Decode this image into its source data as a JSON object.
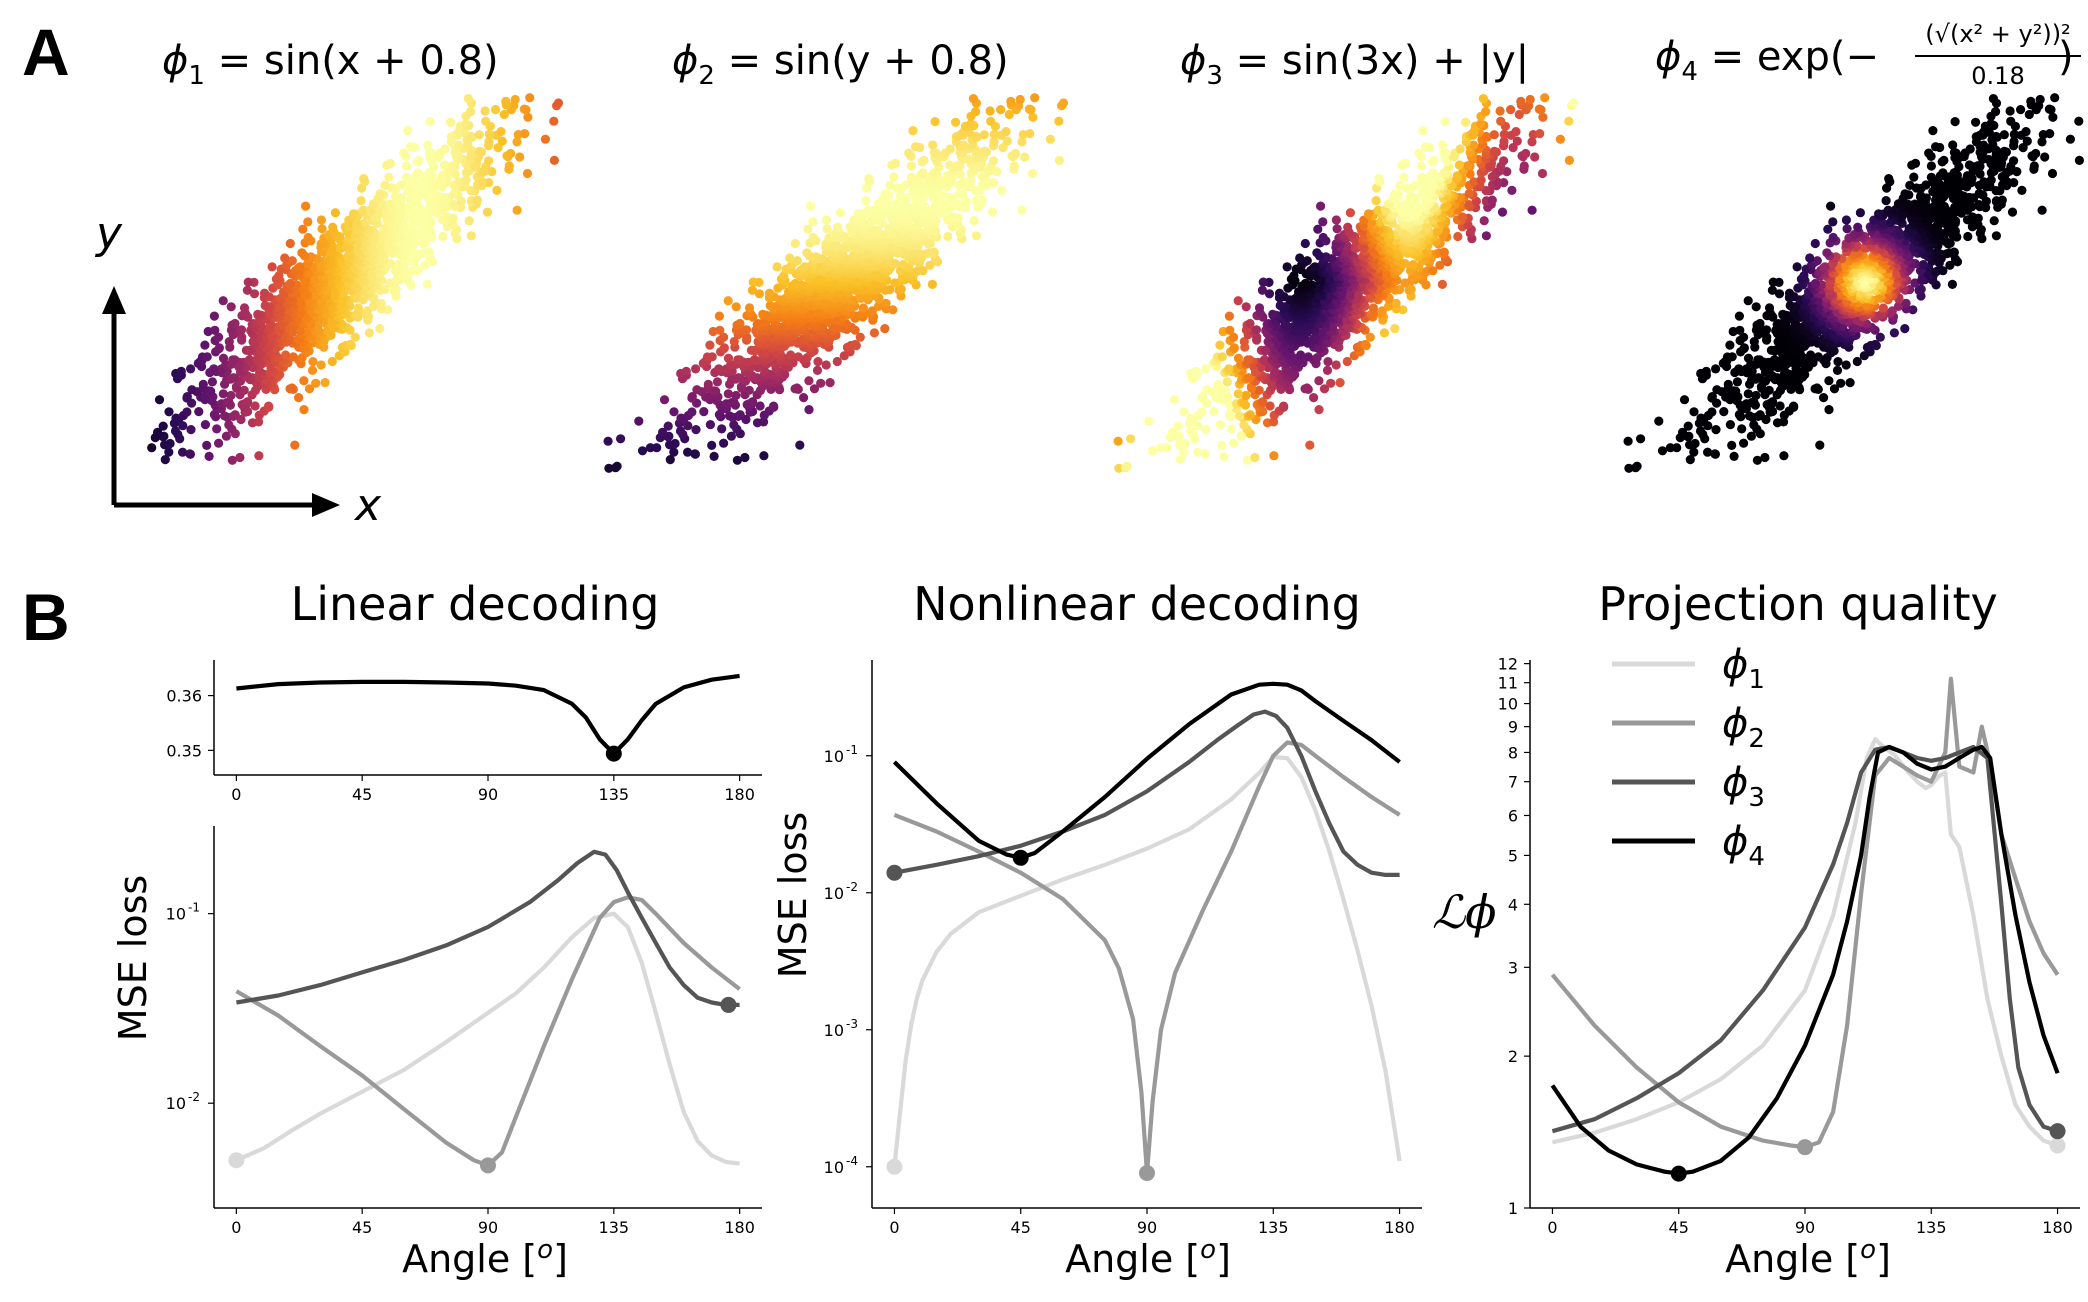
{
  "panels": {
    "a": "A",
    "b": "B"
  },
  "scatter": {
    "titles": [
      {
        "main": "ϕ",
        "sub": "1",
        "rest": " = sin(x + 0.8)"
      },
      {
        "main": "ϕ",
        "sub": "2",
        "rest": " = sin(y + 0.8)"
      },
      {
        "main": "ϕ",
        "sub": "3",
        "rest": " = sin(3x) + |y|"
      },
      {
        "main": "ϕ",
        "sub": "4",
        "rest": " = exp(−"
      }
    ],
    "phi4_fraction": {
      "numerator": "(√(x² + y²))²",
      "denominator": "0.18",
      "close": ")"
    },
    "axes": {
      "x": "x",
      "y": "y"
    },
    "colormap": "inferno",
    "arrow_color": "#000000"
  },
  "chart_data": [
    {
      "type": "line",
      "title": "Linear decoding",
      "inset": {
        "x": [
          0,
          15,
          30,
          45,
          60,
          75,
          90,
          100,
          110,
          120,
          125,
          130,
          135,
          140,
          145,
          150,
          160,
          170,
          180
        ],
        "y": [
          0.3613,
          0.3621,
          0.3624,
          0.3625,
          0.3625,
          0.3624,
          0.3622,
          0.3618,
          0.361,
          0.3585,
          0.356,
          0.352,
          0.3494,
          0.352,
          0.3555,
          0.3585,
          0.3615,
          0.3629,
          0.3636
        ],
        "yticks": [
          "0.35",
          "0.36"
        ],
        "xticks": [
          "0",
          "45",
          "90",
          "135",
          "180"
        ],
        "ylim": [
          0.3455,
          0.3665
        ],
        "min_marker": {
          "x": 135,
          "y": 0.3494
        }
      },
      "xlabel": "Angle [o]",
      "ylabel": "MSE loss",
      "xlim": [
        -8,
        188
      ],
      "ylim": [
        0.0028,
        0.29
      ],
      "yscale": "log",
      "yticks": [
        "10",
        "10"
      ],
      "ytick_exp": [
        "-2",
        "-1"
      ],
      "xticks": [
        "0",
        "45",
        "90",
        "135",
        "180"
      ],
      "series": [
        {
          "name": "ϕ1",
          "color": "#d9d9d9",
          "x": [
            0,
            10,
            20,
            30,
            45,
            60,
            75,
            90,
            100,
            110,
            120,
            128,
            135,
            140,
            145,
            150,
            155,
            160,
            165,
            170,
            175,
            180
          ],
          "y": [
            0.005,
            0.0058,
            0.0072,
            0.0088,
            0.0115,
            0.015,
            0.021,
            0.03,
            0.038,
            0.052,
            0.075,
            0.095,
            0.1,
            0.085,
            0.055,
            0.03,
            0.016,
            0.009,
            0.0063,
            0.0053,
            0.0049,
            0.0048
          ],
          "min_marker": {
            "x": 0,
            "y": 0.005
          }
        },
        {
          "name": "ϕ2",
          "color": "#999999",
          "x": [
            0,
            15,
            30,
            45,
            60,
            75,
            85,
            90,
            95,
            100,
            110,
            120,
            130,
            135,
            140,
            145,
            150,
            160,
            170,
            180
          ],
          "y": [
            0.039,
            0.029,
            0.02,
            0.014,
            0.0093,
            0.0062,
            0.005,
            0.0047,
            0.0055,
            0.0085,
            0.02,
            0.045,
            0.095,
            0.115,
            0.122,
            0.118,
            0.1,
            0.07,
            0.052,
            0.04
          ],
          "min_marker": {
            "x": 90,
            "y": 0.0047
          }
        },
        {
          "name": "ϕ3",
          "color": "#555555",
          "x": [
            0,
            15,
            30,
            45,
            60,
            75,
            90,
            105,
            115,
            122,
            128,
            132,
            136,
            140,
            145,
            150,
            155,
            160,
            165,
            170,
            175,
            180
          ],
          "y": [
            0.034,
            0.037,
            0.042,
            0.049,
            0.057,
            0.068,
            0.085,
            0.115,
            0.15,
            0.185,
            0.212,
            0.205,
            0.17,
            0.13,
            0.095,
            0.07,
            0.052,
            0.042,
            0.036,
            0.034,
            0.033,
            0.033
          ],
          "min_marker": {
            "x": 176,
            "y": 0.033
          }
        }
      ]
    },
    {
      "type": "line",
      "title": "Nonlinear decoding",
      "xlabel": "Angle [o]",
      "ylabel": "MSE loss",
      "xlim": [
        -8,
        188
      ],
      "ylim": [
        5e-05,
        0.5
      ],
      "yscale": "log",
      "yticks": [
        "10",
        "10",
        "10",
        "10"
      ],
      "ytick_exp": [
        "-4",
        "-3",
        "-2",
        "-1"
      ],
      "xticks": [
        "0",
        "45",
        "90",
        "135",
        "180"
      ],
      "series": [
        {
          "name": "ϕ1",
          "color": "#d9d9d9",
          "x": [
            0,
            2,
            4,
            6,
            8,
            10,
            15,
            20,
            30,
            45,
            60,
            75,
            90,
            105,
            120,
            130,
            135,
            140,
            145,
            150,
            155,
            160,
            165,
            170,
            175,
            180
          ],
          "y": [
            0.0001,
            0.00025,
            0.0006,
            0.0011,
            0.0017,
            0.0023,
            0.0037,
            0.005,
            0.0072,
            0.0095,
            0.0125,
            0.016,
            0.021,
            0.029,
            0.048,
            0.075,
            0.098,
            0.096,
            0.07,
            0.04,
            0.02,
            0.009,
            0.0038,
            0.0015,
            0.0005,
            0.00011
          ],
          "min_marker": {
            "x": 0,
            "y": 0.0001
          }
        },
        {
          "name": "ϕ2",
          "color": "#999999",
          "x": [
            0,
            15,
            30,
            45,
            60,
            75,
            80,
            85,
            88,
            90,
            92,
            95,
            100,
            110,
            120,
            130,
            135,
            140,
            145,
            150,
            160,
            170,
            180
          ],
          "y": [
            0.037,
            0.028,
            0.02,
            0.014,
            0.009,
            0.0045,
            0.0028,
            0.0012,
            0.00035,
            9e-05,
            0.0003,
            0.001,
            0.0026,
            0.0075,
            0.02,
            0.06,
            0.1,
            0.125,
            0.12,
            0.1,
            0.07,
            0.05,
            0.037
          ],
          "min_marker": {
            "x": 90,
            "y": 9e-05
          }
        },
        {
          "name": "ϕ3",
          "color": "#555555",
          "x": [
            0,
            15,
            30,
            45,
            60,
            75,
            90,
            105,
            115,
            122,
            128,
            132,
            136,
            140,
            145,
            150,
            155,
            160,
            165,
            170,
            175,
            180
          ],
          "y": [
            0.014,
            0.016,
            0.0185,
            0.022,
            0.028,
            0.037,
            0.055,
            0.09,
            0.13,
            0.165,
            0.2,
            0.21,
            0.195,
            0.16,
            0.1,
            0.055,
            0.032,
            0.02,
            0.016,
            0.014,
            0.0135,
            0.0135
          ],
          "min_marker": {
            "x": 0,
            "y": 0.014
          }
        },
        {
          "name": "ϕ4",
          "color": "#000000",
          "x": [
            0,
            15,
            30,
            40,
            45,
            50,
            60,
            75,
            90,
            105,
            120,
            130,
            135,
            140,
            145,
            150,
            160,
            170,
            180
          ],
          "y": [
            0.09,
            0.045,
            0.024,
            0.019,
            0.018,
            0.0195,
            0.028,
            0.05,
            0.095,
            0.17,
            0.28,
            0.33,
            0.335,
            0.33,
            0.3,
            0.25,
            0.18,
            0.13,
            0.09
          ],
          "min_marker": {
            "x": 45,
            "y": 0.018
          }
        }
      ]
    },
    {
      "type": "line",
      "title": "Projection quality",
      "xlabel": "Angle [o]",
      "ylabel": "ℒϕ",
      "xlim": [
        -8,
        188
      ],
      "ylim": [
        1,
        12.2
      ],
      "yscale": "log",
      "yticks": [
        "1",
        "2",
        "3",
        "4",
        "5",
        "6",
        "7",
        "8",
        "9",
        "10",
        "11",
        "12"
      ],
      "xticks": [
        "0",
        "45",
        "90",
        "135",
        "180"
      ],
      "legend": {
        "location": "top-left",
        "entries": [
          {
            "main": "ϕ",
            "sub": "1"
          },
          {
            "main": "ϕ",
            "sub": "2"
          },
          {
            "main": "ϕ",
            "sub": "3"
          },
          {
            "main": "ϕ",
            "sub": "4"
          }
        ]
      },
      "series": [
        {
          "name": "ϕ1",
          "color": "#d9d9d9",
          "x": [
            0,
            15,
            30,
            45,
            60,
            75,
            90,
            100,
            108,
            112,
            115,
            118,
            122,
            126,
            130,
            133,
            135,
            138,
            140,
            142,
            145,
            150,
            155,
            160,
            165,
            170,
            175,
            180
          ],
          "y": [
            1.35,
            1.41,
            1.5,
            1.62,
            1.8,
            2.1,
            2.7,
            3.8,
            5.8,
            7.8,
            8.5,
            8.2,
            7.9,
            7.4,
            7.0,
            6.8,
            6.9,
            7.2,
            7.3,
            5.5,
            5.2,
            3.8,
            2.6,
            2.0,
            1.6,
            1.45,
            1.36,
            1.33
          ],
          "min_marker": {
            "x": 180,
            "y": 1.33
          }
        },
        {
          "name": "ϕ2",
          "color": "#999999",
          "x": [
            0,
            15,
            30,
            45,
            60,
            75,
            85,
            90,
            95,
            100,
            105,
            110,
            115,
            120,
            125,
            130,
            135,
            140,
            142,
            145,
            150,
            153,
            156,
            160,
            165,
            170,
            175,
            180
          ],
          "y": [
            2.9,
            2.3,
            1.9,
            1.62,
            1.45,
            1.36,
            1.33,
            1.32,
            1.35,
            1.55,
            2.3,
            4.2,
            7.2,
            7.8,
            7.5,
            7.2,
            7.0,
            8.0,
            11.2,
            7.5,
            7.3,
            9.0,
            7.6,
            5.5,
            4.5,
            3.7,
            3.2,
            2.9
          ],
          "min_marker": {
            "x": 90,
            "y": 1.32
          }
        },
        {
          "name": "ϕ3",
          "color": "#555555",
          "x": [
            0,
            15,
            30,
            45,
            60,
            75,
            90,
            100,
            105,
            110,
            115,
            120,
            125,
            130,
            135,
            140,
            145,
            150,
            155,
            160,
            163,
            166,
            170,
            175,
            180
          ],
          "y": [
            1.42,
            1.5,
            1.65,
            1.85,
            2.15,
            2.7,
            3.6,
            4.8,
            5.8,
            7.3,
            8.1,
            8.2,
            8.0,
            7.8,
            7.7,
            7.8,
            8.0,
            8.2,
            7.8,
            4.0,
            2.6,
            1.9,
            1.6,
            1.45,
            1.42
          ],
          "min_marker": {
            "x": 180,
            "y": 1.42
          }
        },
        {
          "name": "ϕ4",
          "color": "#000000",
          "x": [
            0,
            10,
            20,
            30,
            40,
            45,
            50,
            60,
            70,
            80,
            90,
            100,
            105,
            110,
            113,
            116,
            120,
            125,
            130,
            135,
            140,
            145,
            150,
            153,
            156,
            160,
            165,
            170,
            175,
            180
          ],
          "y": [
            1.75,
            1.45,
            1.3,
            1.22,
            1.18,
            1.17,
            1.18,
            1.24,
            1.38,
            1.65,
            2.1,
            2.9,
            3.7,
            5.0,
            6.5,
            8.0,
            8.2,
            8.0,
            7.6,
            7.4,
            7.5,
            7.8,
            8.1,
            8.2,
            7.8,
            5.5,
            3.8,
            2.8,
            2.2,
            1.85
          ],
          "min_marker": {
            "x": 45,
            "y": 1.17
          }
        }
      ]
    }
  ]
}
